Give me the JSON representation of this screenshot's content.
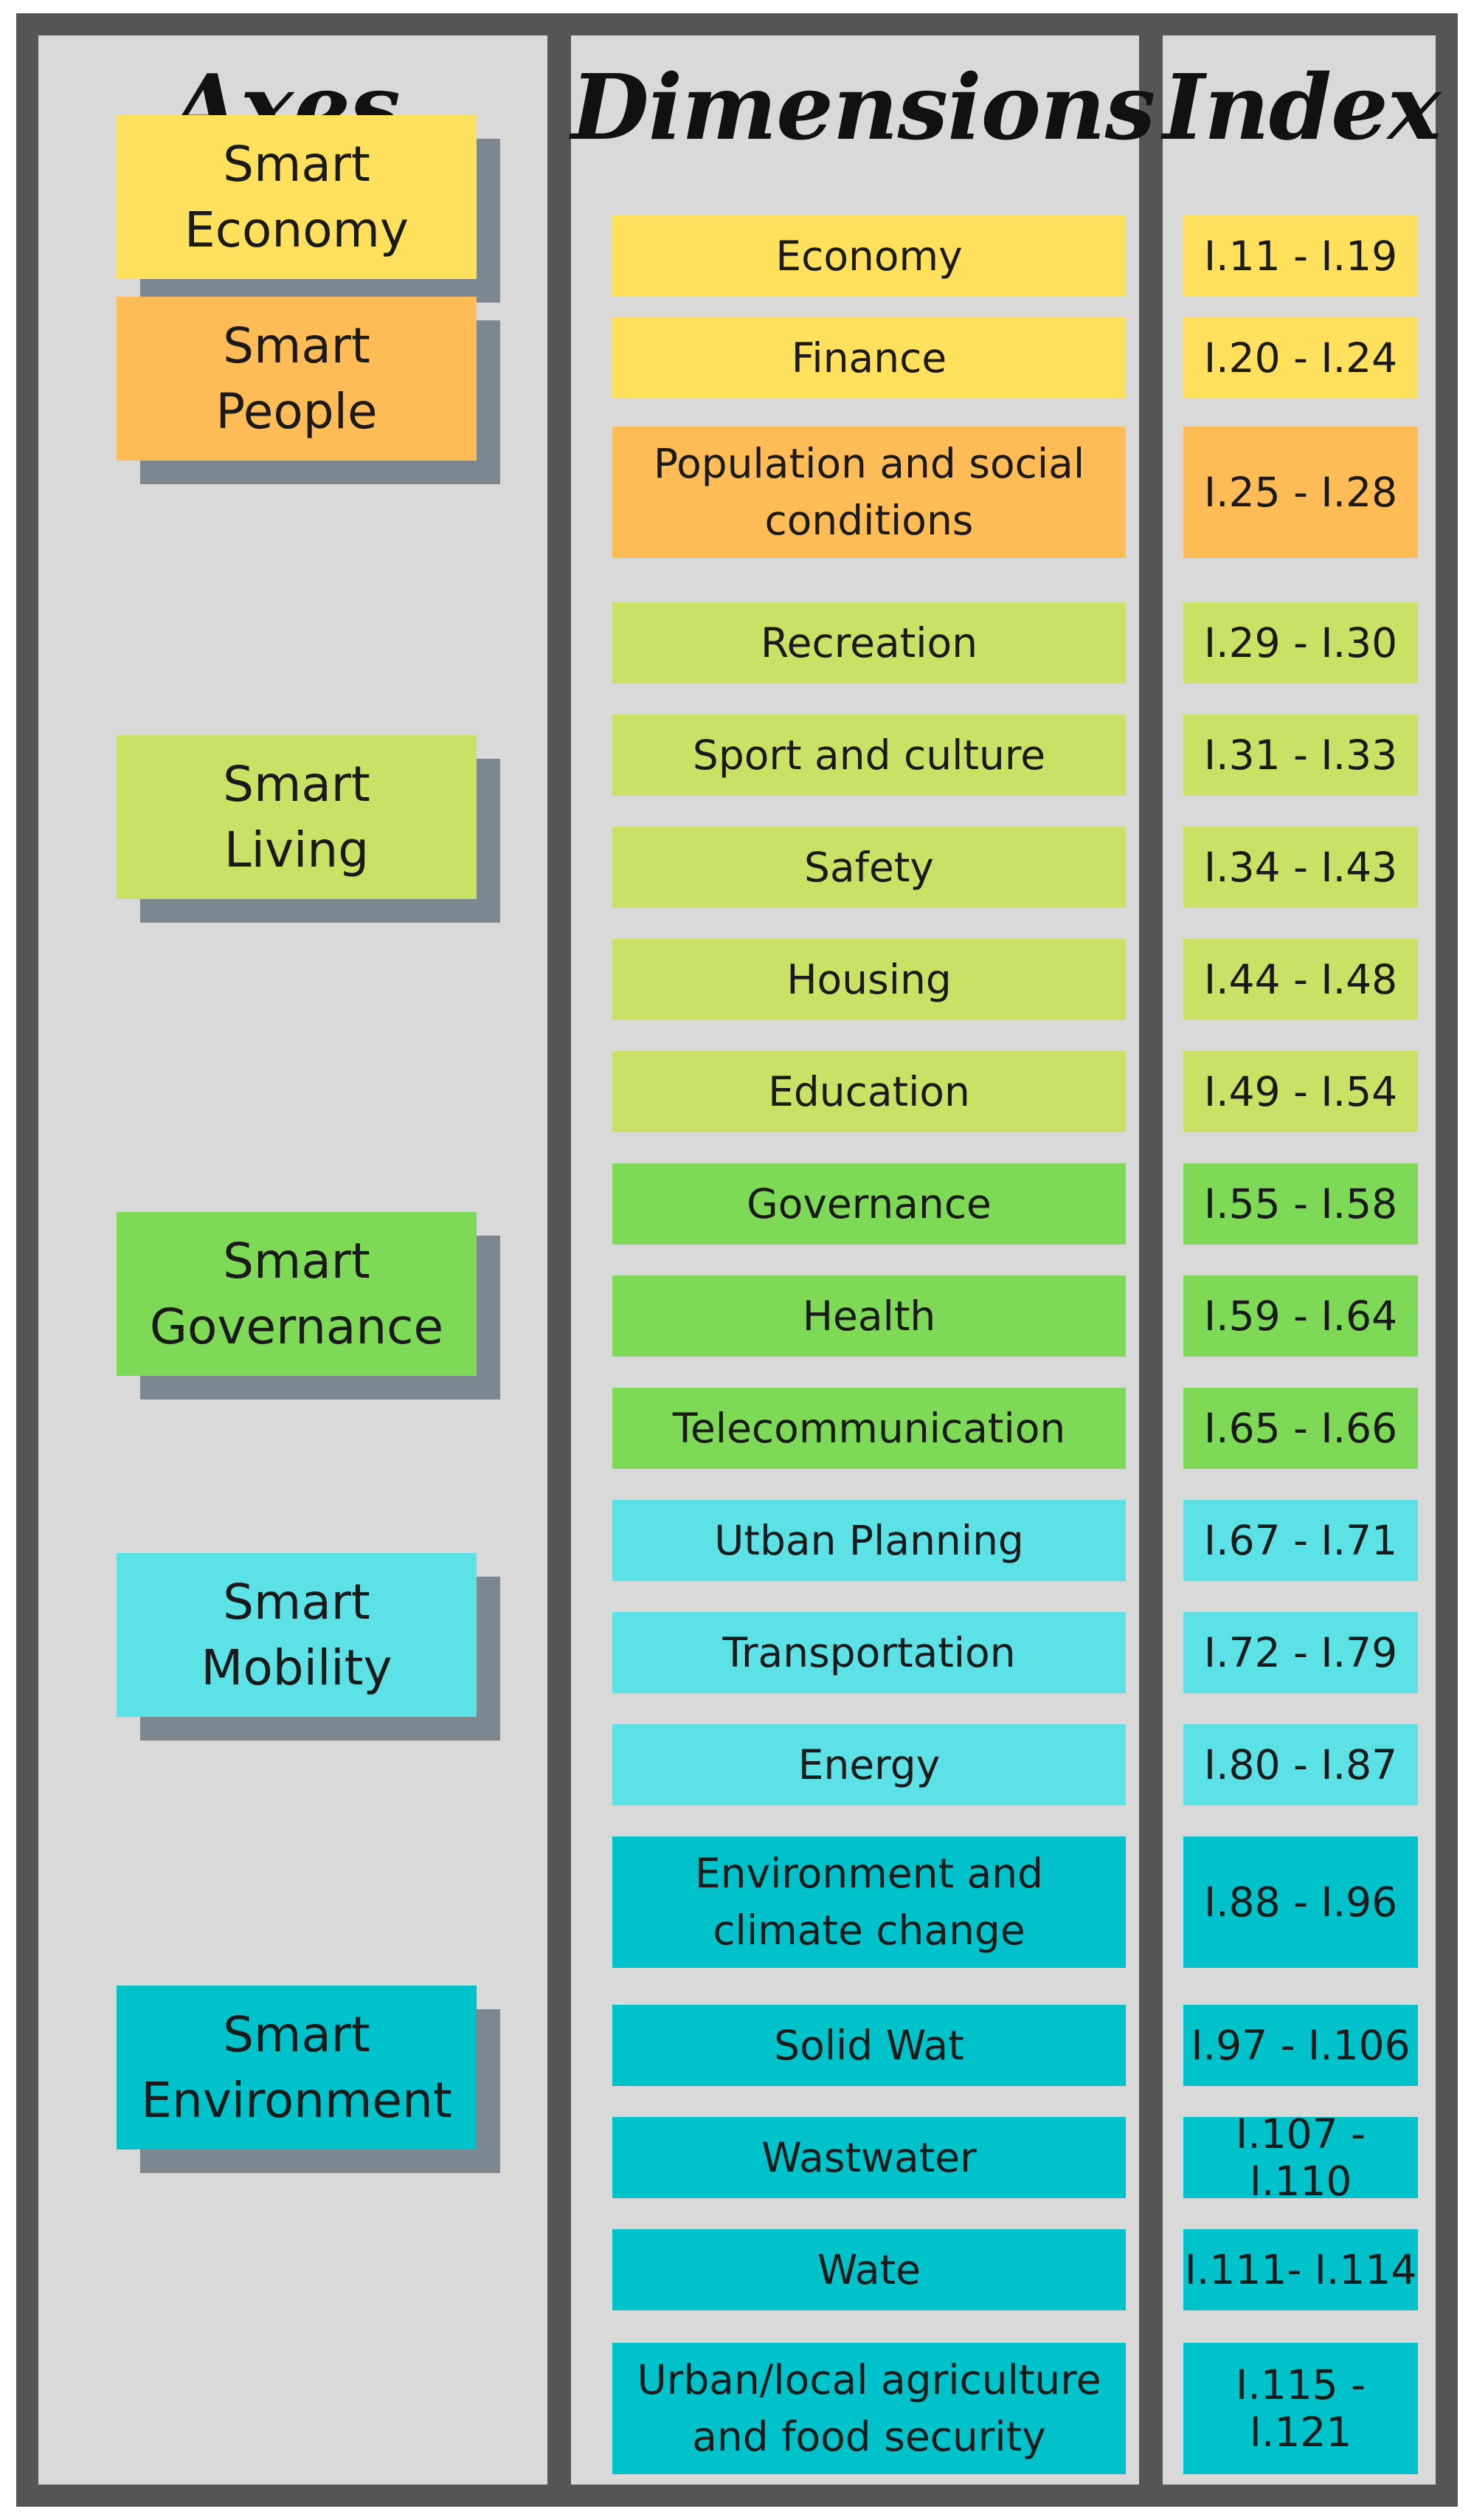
{
  "columns": {
    "axes": "Axes",
    "dimensions": "Dimensions",
    "index": "Index"
  },
  "palette": {
    "yellow": "#ffe05c",
    "orange": "#ffbb55",
    "lime": "#c9e265",
    "green": "#7ed957",
    "cyan": "#5ce1e6",
    "teal": "#00c2cb",
    "frame": "#555555",
    "panel": "#d9d9d9",
    "shadow": "#7d8790"
  },
  "axes": [
    {
      "label": "Smart\nEconomy",
      "color": "yellow"
    },
    {
      "label": "Smart\nPeople",
      "color": "orange"
    },
    {
      "label": "Smart\nLiving",
      "color": "lime"
    },
    {
      "label": "Smart\nGovernance",
      "color": "green"
    },
    {
      "label": "Smart\nMobility",
      "color": "cyan"
    },
    {
      "label": "Smart\nEnvironment",
      "color": "teal"
    }
  ],
  "rows": [
    {
      "dimension": "Economy",
      "index": "I.11 - I.19",
      "color": "yellow"
    },
    {
      "dimension": "Finance",
      "index": "I.20 - I.24",
      "color": "yellow"
    },
    {
      "dimension": "Population and social conditions",
      "index": "I.25 - I.28",
      "color": "orange"
    },
    {
      "dimension": "Recreation",
      "index": "I.29 - I.30",
      "color": "lime"
    },
    {
      "dimension": "Sport and culture",
      "index": "I.31 - I.33",
      "color": "lime"
    },
    {
      "dimension": "Safety",
      "index": "I.34 - I.43",
      "color": "lime"
    },
    {
      "dimension": "Housing",
      "index": "I.44 - I.48",
      "color": "lime"
    },
    {
      "dimension": "Education",
      "index": "I.49 - I.54",
      "color": "lime"
    },
    {
      "dimension": "Governance",
      "index": "I.55 - I.58",
      "color": "green"
    },
    {
      "dimension": "Health",
      "index": "I.59 - I.64",
      "color": "green"
    },
    {
      "dimension": "Telecommunication",
      "index": "I.65 - I.66",
      "color": "green"
    },
    {
      "dimension": "Utban Planning",
      "index": "I.67 - I.71",
      "color": "cyan"
    },
    {
      "dimension": "Transportation",
      "index": "I.72 - I.79",
      "color": "cyan"
    },
    {
      "dimension": "Energy",
      "index": "I.80 - I.87",
      "color": "cyan"
    },
    {
      "dimension": "Environment and climate change",
      "index": "I.88 - I.96",
      "color": "teal"
    },
    {
      "dimension": "Solid Wat",
      "index": "I.97 - I.106",
      "color": "teal"
    },
    {
      "dimension": "Wastwater",
      "index": "I.107 - I.110",
      "color": "teal"
    },
    {
      "dimension": "Wate",
      "index": "I.111- I.114",
      "color": "teal"
    },
    {
      "dimension": "Urban/local agriculture and food security",
      "index": "I.115 - I.121",
      "color": "teal"
    }
  ]
}
